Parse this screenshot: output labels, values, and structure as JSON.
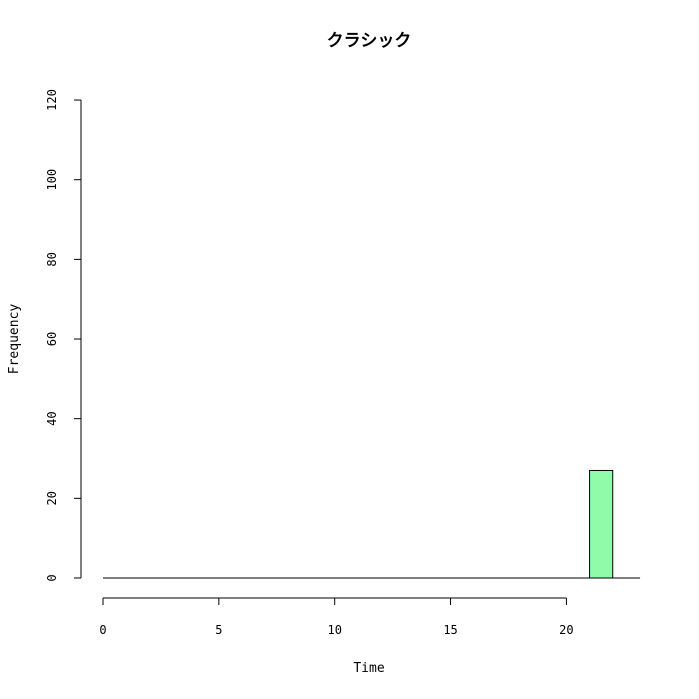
{
  "chart_data": {
    "type": "bar",
    "title": "クラシック",
    "xlabel": "Time",
    "ylabel": "Frequency",
    "bins": [
      {
        "start": 0,
        "end": 1,
        "count": 0
      },
      {
        "start": 1,
        "end": 2,
        "count": 0
      },
      {
        "start": 2,
        "end": 3,
        "count": 0
      },
      {
        "start": 3,
        "end": 4,
        "count": 0
      },
      {
        "start": 4,
        "end": 5,
        "count": 0
      },
      {
        "start": 5,
        "end": 6,
        "count": 0
      },
      {
        "start": 6,
        "end": 7,
        "count": 0
      },
      {
        "start": 7,
        "end": 8,
        "count": 0
      },
      {
        "start": 8,
        "end": 9,
        "count": 0
      },
      {
        "start": 9,
        "end": 10,
        "count": 0
      },
      {
        "start": 10,
        "end": 11,
        "count": 0
      },
      {
        "start": 11,
        "end": 12,
        "count": 0
      },
      {
        "start": 12,
        "end": 13,
        "count": 0
      },
      {
        "start": 13,
        "end": 14,
        "count": 0
      },
      {
        "start": 14,
        "end": 15,
        "count": 0
      },
      {
        "start": 15,
        "end": 16,
        "count": 0
      },
      {
        "start": 16,
        "end": 17,
        "count": 0
      },
      {
        "start": 17,
        "end": 18,
        "count": 0
      },
      {
        "start": 18,
        "end": 19,
        "count": 0
      },
      {
        "start": 19,
        "end": 20,
        "count": 0
      },
      {
        "start": 20,
        "end": 21,
        "count": 0
      },
      {
        "start": 21,
        "end": 22,
        "count": 27
      }
    ],
    "xlim": [
      0,
      24
    ],
    "ylim": [
      0,
      120
    ],
    "xticks": [
      0,
      5,
      10,
      15,
      20
    ],
    "yticks": [
      0,
      20,
      40,
      60,
      80,
      100,
      120
    ],
    "bar_color": "#90fca9",
    "grid": false
  }
}
